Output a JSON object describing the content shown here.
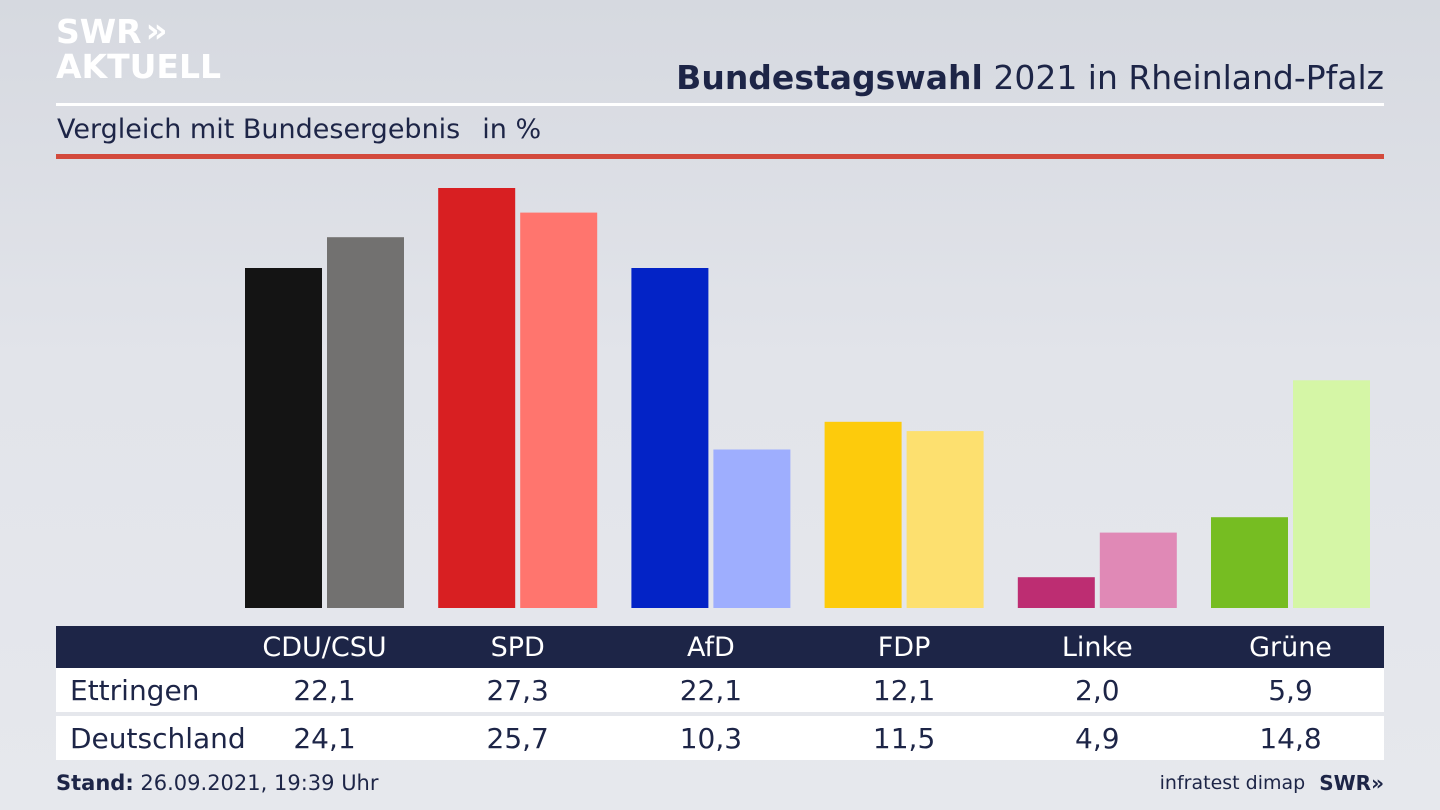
{
  "logo": {
    "line1": "SWR",
    "chevrons": "»",
    "line2": "AKTUELL"
  },
  "header": {
    "title_bold": "Bundestagswahl",
    "title_rest": "2021 in Rheinland-Pfalz",
    "subtitle": "Vergleich mit Bundesergebnis",
    "unit": "in %"
  },
  "chart_data": {
    "type": "bar",
    "title": "Bundestagswahl 2021 in Rheinland-Pfalz",
    "subtitle": "Vergleich mit Bundesergebnis in %",
    "categories": [
      "CDU/CSU",
      "SPD",
      "AfD",
      "FDP",
      "Linke",
      "Grüne"
    ],
    "series": [
      {
        "name": "Ettringen",
        "values": [
          22.1,
          27.3,
          22.1,
          12.1,
          2.0,
          5.9
        ]
      },
      {
        "name": "Deutschland",
        "values": [
          24.1,
          25.7,
          10.3,
          11.5,
          4.9,
          14.8
        ]
      }
    ],
    "colors": {
      "Ettringen": [
        "#141414",
        "#d81f22",
        "#0323c6",
        "#fdcb0c",
        "#bd2d72",
        "#76bd22"
      ],
      "Deutschland": [
        "#727170",
        "#ff756e",
        "#9eaefe",
        "#fde06f",
        "#e089b6",
        "#d5f6a6"
      ]
    },
    "value_display": {
      "Ettringen": [
        "22,1",
        "27,3",
        "22,1",
        "12,1",
        "2,0",
        "5,9"
      ],
      "Deutschland": [
        "24,1",
        "25,7",
        "10,3",
        "11,5",
        "4,9",
        "14,8"
      ]
    },
    "ylim": [
      0,
      27.3
    ]
  },
  "footer": {
    "stand_label": "Stand:",
    "stand_value": "26.09.2021, 19:39 Uhr",
    "source": "infratest dimap",
    "brand": "SWR»"
  }
}
